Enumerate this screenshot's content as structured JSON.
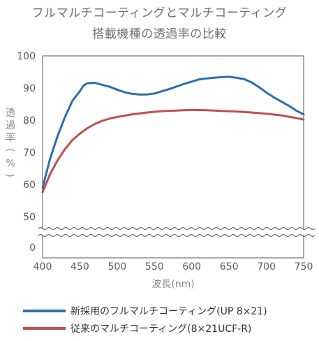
{
  "title": "フルマルチコーティングとマルチコーティング",
  "subtitle": "搭載機種の透過率の比較",
  "chart_data": {
    "type": "line",
    "title": "フルマルチコーティングとマルチコーティング",
    "subtitle": "搭載機種の透過率の比較",
    "xlabel": "波長(nm)",
    "ylabel": "透過率(%)",
    "xlim": [
      400,
      750
    ],
    "ylim": [
      45,
      100
    ],
    "axis_break": true,
    "xticks": [
      "400",
      "450",
      "500",
      "550",
      "600",
      "650",
      "700",
      "750"
    ],
    "yticks": [
      "100",
      "90",
      "80",
      "70",
      "60",
      "50",
      "0"
    ],
    "grid": false,
    "legend_position": "bottom",
    "series": [
      {
        "name": "新採用のフルマルチコーティング(UP 8×21)",
        "color": "#2a6fad",
        "x": [
          400,
          410,
          420,
          430,
          440,
          450,
          455,
          460,
          470,
          480,
          490,
          500,
          510,
          520,
          530,
          540,
          550,
          560,
          570,
          580,
          590,
          600,
          610,
          620,
          630,
          640,
          650,
          660,
          670,
          680,
          690,
          700,
          710,
          720,
          730,
          740,
          750
        ],
        "y": [
          59,
          68,
          75,
          81,
          86,
          89,
          90.8,
          91.5,
          91.6,
          91.0,
          90.4,
          89.5,
          88.7,
          88.2,
          88.0,
          88.0,
          88.3,
          89.0,
          89.7,
          90.5,
          91.3,
          92.0,
          92.7,
          93.0,
          93.2,
          93.4,
          93.5,
          93.2,
          92.8,
          91.8,
          90.3,
          88.6,
          87.1,
          85.8,
          84.5,
          83.0,
          81.8
        ]
      },
      {
        "name": "従来のマルチコーティング(8×21UCF-R)",
        "color": "#c0504d",
        "x": [
          400,
          410,
          420,
          430,
          440,
          450,
          460,
          470,
          480,
          490,
          500,
          520,
          540,
          560,
          580,
          600,
          620,
          640,
          660,
          680,
          700,
          720,
          740,
          750
        ],
        "y": [
          57.6,
          63.2,
          67.5,
          71.0,
          73.8,
          75.8,
          77.5,
          78.8,
          79.8,
          80.5,
          81.0,
          81.8,
          82.4,
          82.8,
          83.0,
          83.2,
          83.1,
          82.9,
          82.7,
          82.4,
          82.0,
          81.5,
          80.7,
          80.2
        ]
      }
    ]
  }
}
